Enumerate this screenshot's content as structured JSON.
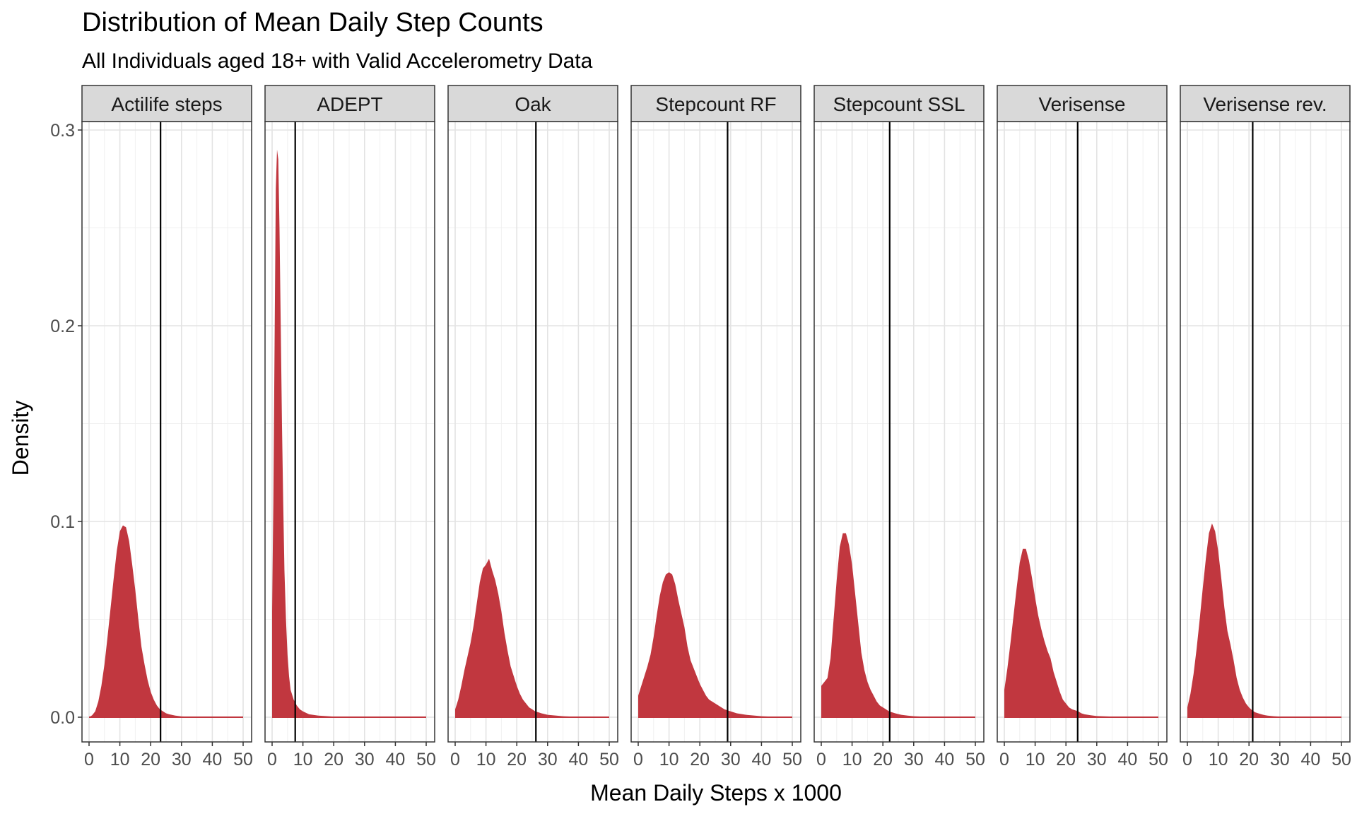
{
  "chart_data": {
    "type": "area",
    "title": "Distribution of Mean Daily Step Counts",
    "subtitle": "All Individuals aged 18+ with Valid Accelerometry Data",
    "xlabel": "Mean Daily Steps x 1000",
    "ylabel": "Density",
    "xlim": [
      0,
      50
    ],
    "ylim": [
      0,
      0.3
    ],
    "x_ticks": [
      0,
      10,
      20,
      30,
      40,
      50
    ],
    "y_ticks": [
      0.0,
      0.1,
      0.2,
      0.3
    ],
    "x_tick_labels": [
      "0",
      "10",
      "20",
      "30",
      "40",
      "50"
    ],
    "y_tick_labels": [
      "0.0",
      "0.1",
      "0.2",
      "0.3"
    ],
    "grid": true,
    "fill_color": "#C1373F",
    "vline_color": "#000000",
    "panels": [
      {
        "label": "Actilife steps",
        "vline": 23.2,
        "x": [
          0,
          1,
          2,
          3,
          4,
          5,
          6,
          7,
          8,
          9,
          10,
          11,
          12,
          13,
          14,
          15,
          16,
          17,
          18,
          19,
          20,
          21,
          22,
          23,
          24,
          25,
          26,
          28,
          30,
          35,
          40,
          45,
          50
        ],
        "y": [
          0.0,
          0.001,
          0.003,
          0.008,
          0.016,
          0.027,
          0.041,
          0.056,
          0.071,
          0.085,
          0.095,
          0.098,
          0.097,
          0.09,
          0.078,
          0.065,
          0.05,
          0.036,
          0.027,
          0.019,
          0.013,
          0.009,
          0.006,
          0.004,
          0.003,
          0.002,
          0.0015,
          0.0008,
          0.0004,
          0.0002,
          0.0001,
          0.0,
          0.0
        ]
      },
      {
        "label": "ADEPT",
        "vline": 7.5,
        "x": [
          0,
          0.4,
          0.8,
          1.2,
          1.6,
          2.0,
          2.4,
          2.8,
          3.2,
          3.6,
          4.0,
          4.5,
          5.0,
          5.5,
          6.0,
          7.0,
          8.0,
          9.0,
          10.0,
          12.0,
          15.0,
          20.0,
          30.0,
          40.0,
          50.0
        ],
        "y": [
          0.054,
          0.11,
          0.19,
          0.27,
          0.29,
          0.285,
          0.25,
          0.2,
          0.15,
          0.11,
          0.075,
          0.05,
          0.032,
          0.021,
          0.014,
          0.009,
          0.006,
          0.004,
          0.003,
          0.0015,
          0.0008,
          0.0003,
          0.0001,
          0.0,
          0.0
        ]
      },
      {
        "label": "Oak",
        "vline": 26.2,
        "x": [
          0,
          1,
          2,
          3,
          4,
          5,
          6,
          7,
          8,
          9,
          10,
          11,
          12,
          13,
          14,
          15,
          16,
          17,
          18,
          19,
          20,
          21,
          22,
          23,
          24,
          25,
          26,
          28,
          30,
          35,
          40,
          45,
          50
        ],
        "y": [
          0.004,
          0.009,
          0.016,
          0.024,
          0.031,
          0.038,
          0.047,
          0.058,
          0.069,
          0.076,
          0.078,
          0.081,
          0.075,
          0.07,
          0.063,
          0.054,
          0.043,
          0.034,
          0.026,
          0.021,
          0.016,
          0.012,
          0.009,
          0.007,
          0.005,
          0.004,
          0.003,
          0.002,
          0.0012,
          0.0005,
          0.0002,
          0.0001,
          0.0
        ]
      },
      {
        "label": "Stepcount RF",
        "vline": 29.0,
        "x": [
          0,
          1,
          2,
          3,
          4,
          5,
          6,
          7,
          8,
          9,
          10,
          11,
          12,
          13,
          14,
          15,
          16,
          17,
          18,
          19,
          20,
          21,
          22,
          23,
          24,
          25,
          26,
          28,
          30,
          32,
          35,
          40,
          45,
          50
        ],
        "y": [
          0.011,
          0.016,
          0.021,
          0.026,
          0.032,
          0.041,
          0.052,
          0.062,
          0.069,
          0.073,
          0.074,
          0.073,
          0.068,
          0.06,
          0.053,
          0.046,
          0.036,
          0.029,
          0.025,
          0.021,
          0.017,
          0.014,
          0.011,
          0.009,
          0.008,
          0.007,
          0.006,
          0.004,
          0.003,
          0.002,
          0.0012,
          0.0005,
          0.0002,
          0.0
        ]
      },
      {
        "label": "Stepcount SSL",
        "vline": 22.2,
        "x": [
          0,
          1,
          2,
          3,
          4,
          5,
          6,
          7,
          8,
          9,
          10,
          11,
          12,
          13,
          14,
          15,
          16,
          17,
          18,
          19,
          20,
          21,
          22,
          23,
          24,
          25,
          26,
          28,
          30,
          35,
          40,
          45,
          50
        ],
        "y": [
          0.016,
          0.018,
          0.02,
          0.03,
          0.05,
          0.07,
          0.087,
          0.094,
          0.094,
          0.088,
          0.078,
          0.063,
          0.048,
          0.033,
          0.024,
          0.018,
          0.014,
          0.011,
          0.008,
          0.006,
          0.005,
          0.004,
          0.003,
          0.0025,
          0.002,
          0.0016,
          0.0012,
          0.0008,
          0.0005,
          0.0002,
          0.0001,
          0.0,
          0.0
        ]
      },
      {
        "label": "Verisense",
        "vline": 23.8,
        "x": [
          0,
          1,
          2,
          3,
          4,
          5,
          6,
          7,
          8,
          9,
          10,
          11,
          12,
          13,
          14,
          15,
          16,
          17,
          18,
          19,
          20,
          21,
          22,
          23,
          24,
          25,
          26,
          28,
          30,
          35,
          40,
          45,
          50
        ],
        "y": [
          0.014,
          0.025,
          0.038,
          0.052,
          0.066,
          0.079,
          0.086,
          0.086,
          0.08,
          0.071,
          0.061,
          0.052,
          0.045,
          0.039,
          0.034,
          0.03,
          0.023,
          0.018,
          0.013,
          0.009,
          0.007,
          0.005,
          0.004,
          0.0035,
          0.003,
          0.002,
          0.0015,
          0.001,
          0.0006,
          0.0003,
          0.0001,
          0.0,
          0.0
        ]
      },
      {
        "label": "Verisense rev.",
        "vline": 21.2,
        "x": [
          0,
          1,
          2,
          3,
          4,
          5,
          6,
          7,
          8,
          9,
          10,
          11,
          12,
          13,
          14,
          15,
          16,
          17,
          18,
          19,
          20,
          21,
          22,
          23,
          24,
          25,
          26,
          28,
          30,
          35,
          40,
          45,
          50
        ],
        "y": [
          0.005,
          0.012,
          0.022,
          0.035,
          0.05,
          0.066,
          0.081,
          0.094,
          0.099,
          0.095,
          0.085,
          0.071,
          0.056,
          0.044,
          0.037,
          0.029,
          0.02,
          0.014,
          0.01,
          0.007,
          0.005,
          0.0035,
          0.0025,
          0.002,
          0.0015,
          0.0011,
          0.0008,
          0.0005,
          0.0003,
          0.0001,
          0.0,
          0.0,
          0.0
        ]
      }
    ]
  }
}
